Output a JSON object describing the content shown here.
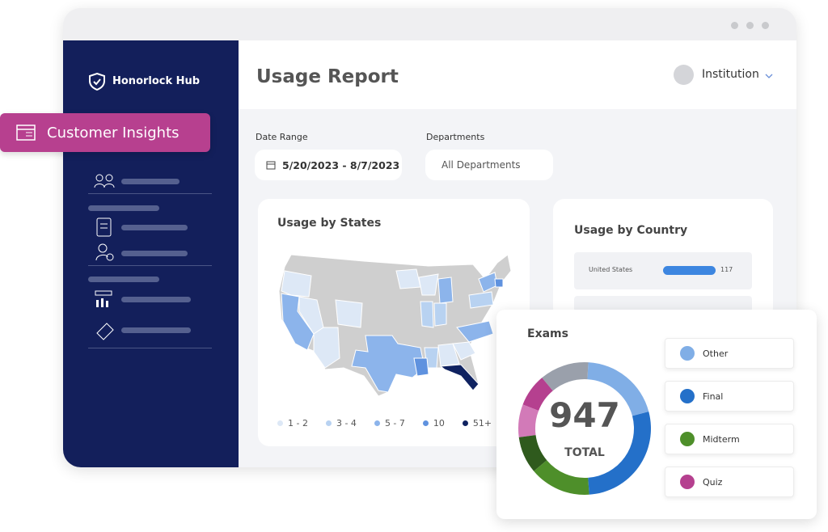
{
  "sidebar": {
    "brand": "Honorlock Hub",
    "badge": "Customer Insights"
  },
  "header": {
    "title": "Usage Report",
    "account": "Institution"
  },
  "filters": {
    "date_label": "Date Range",
    "date_value": "5/20/2023 - 8/7/2023",
    "dept_label": "Departments",
    "dept_value": "All Departments"
  },
  "states_card": {
    "title": "Usage by States",
    "legend": [
      {
        "label": "1 - 2",
        "color": "#dde8f6"
      },
      {
        "label": "3 - 4",
        "color": "#b8d2f1"
      },
      {
        "label": "5 - 7",
        "color": "#8cb4eb"
      },
      {
        "label": "10",
        "color": "#5f92df"
      },
      {
        "label": "51+",
        "color": "#0f2260"
      }
    ]
  },
  "country_card": {
    "title": "Usage by Country",
    "rows": [
      {
        "name": "United States",
        "value": 117,
        "color": "#3d86e0"
      }
    ],
    "xlim": [
      0,
      117
    ]
  },
  "exams_card": {
    "title": "Exams",
    "total": 947,
    "total_label": "TOTAL",
    "segments": [
      {
        "value": 12,
        "color": "#9aa0ab"
      },
      {
        "value": 20,
        "color": "#80aee6"
      },
      {
        "value": 28,
        "color": "#2470c9"
      },
      {
        "value": 15,
        "color": "#4e8f2a"
      },
      {
        "value": 9,
        "color": "#2f5a1d"
      },
      {
        "value": 8,
        "color": "#d27ab8"
      },
      {
        "value": 8,
        "color": "#b5408f"
      }
    ],
    "legend": [
      {
        "name": "Other",
        "color": "#80aee6"
      },
      {
        "name": "Final",
        "color": "#2470c9"
      },
      {
        "name": "Midterm",
        "color": "#4e8f2a"
      },
      {
        "name": "Quiz",
        "color": "#b5408f"
      }
    ]
  }
}
